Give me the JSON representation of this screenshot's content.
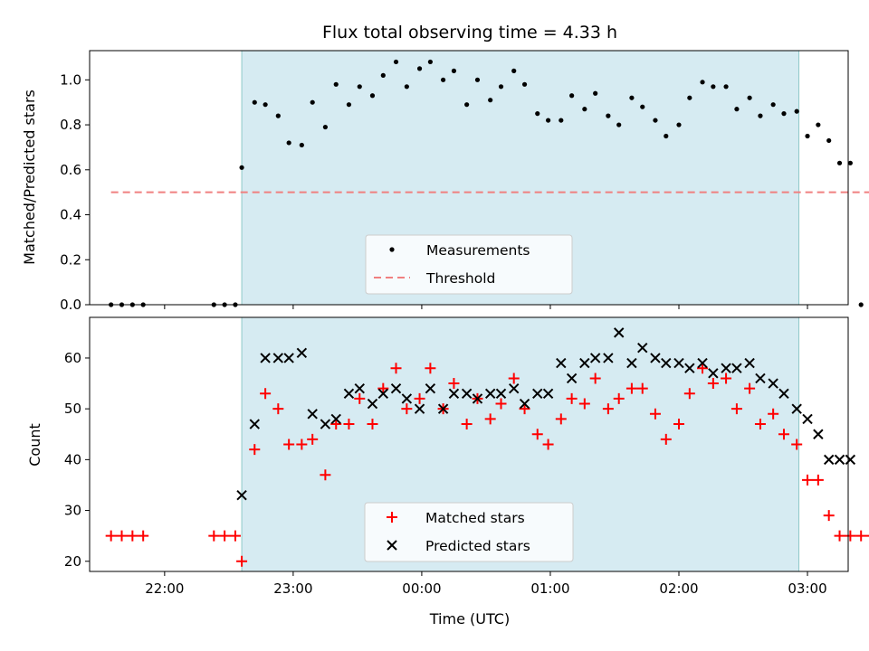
{
  "chart_data": [
    {
      "type": "scatter",
      "title": "Flux total observing time = 4.33 h",
      "xlabel": "",
      "ylabel": "Matched/Predicted stars",
      "ylim": [
        0,
        1.13
      ],
      "yticks": [
        "0.0",
        "0.2",
        "0.4",
        "0.6",
        "0.8",
        "1.0"
      ],
      "grid": false,
      "legend_position": "lower center",
      "observing_window": [
        "22:36",
        "02:56"
      ],
      "series": [
        {
          "name": "Measurements",
          "marker": "dot",
          "color": "#000000",
          "points": [
            [
              "21:35",
              0.0
            ],
            [
              "21:40",
              0.0
            ],
            [
              "21:45",
              0.0
            ],
            [
              "21:50",
              0.0
            ],
            [
              "22:23",
              0.0
            ],
            [
              "22:28",
              0.0
            ],
            [
              "22:33",
              0.0
            ],
            [
              "22:36",
              0.61
            ],
            [
              "22:42",
              0.9
            ],
            [
              "22:47",
              0.89
            ],
            [
              "22:53",
              0.84
            ],
            [
              "22:58",
              0.72
            ],
            [
              "23:04",
              0.71
            ],
            [
              "23:09",
              0.9
            ],
            [
              "23:15",
              0.79
            ],
            [
              "23:20",
              0.98
            ],
            [
              "23:26",
              0.89
            ],
            [
              "23:31",
              0.97
            ],
            [
              "23:37",
              0.93
            ],
            [
              "23:42",
              1.02
            ],
            [
              "23:48",
              1.08
            ],
            [
              "23:53",
              0.97
            ],
            [
              "23:59",
              1.05
            ],
            [
              "00:04",
              1.08
            ],
            [
              "00:10",
              1.0
            ],
            [
              "00:15",
              1.04
            ],
            [
              "00:21",
              0.89
            ],
            [
              "00:26",
              1.0
            ],
            [
              "00:32",
              0.91
            ],
            [
              "00:37",
              0.97
            ],
            [
              "00:43",
              1.04
            ],
            [
              "00:48",
              0.98
            ],
            [
              "00:54",
              0.85
            ],
            [
              "00:59",
              0.82
            ],
            [
              "01:05",
              0.82
            ],
            [
              "01:10",
              0.93
            ],
            [
              "01:16",
              0.87
            ],
            [
              "01:21",
              0.94
            ],
            [
              "01:27",
              0.84
            ],
            [
              "01:32",
              0.8
            ],
            [
              "01:38",
              0.92
            ],
            [
              "01:43",
              0.88
            ],
            [
              "01:49",
              0.82
            ],
            [
              "01:54",
              0.75
            ],
            [
              "02:00",
              0.8
            ],
            [
              "02:05",
              0.92
            ],
            [
              "02:11",
              0.99
            ],
            [
              "02:16",
              0.97
            ],
            [
              "02:22",
              0.97
            ],
            [
              "02:27",
              0.87
            ],
            [
              "02:33",
              0.92
            ],
            [
              "02:38",
              0.84
            ],
            [
              "02:44",
              0.89
            ],
            [
              "02:49",
              0.85
            ],
            [
              "02:55",
              0.86
            ],
            [
              "03:00",
              0.75
            ],
            [
              "03:05",
              0.8
            ],
            [
              "03:10",
              0.73
            ],
            [
              "03:15",
              0.63
            ],
            [
              "03:20",
              0.63
            ],
            [
              "03:25",
              0.0
            ],
            [
              "03:30",
              0.0
            ]
          ]
        },
        {
          "name": "Threshold",
          "style": "dashed",
          "color": "#f08080",
          "points": [
            [
              "21:35",
              0.5
            ],
            [
              "03:30",
              0.5
            ]
          ]
        }
      ]
    },
    {
      "type": "scatter",
      "title": "",
      "xlabel": "Time (UTC)",
      "ylabel": "Count",
      "ylim": [
        18,
        68
      ],
      "yticks": [
        "20",
        "30",
        "40",
        "50",
        "60"
      ],
      "xticks": [
        "22:00",
        "23:00",
        "00:00",
        "01:00",
        "02:00",
        "03:00"
      ],
      "grid": false,
      "legend_position": "lower center",
      "observing_window": [
        "22:36",
        "02:56"
      ],
      "series": [
        {
          "name": "Matched stars",
          "marker": "plus",
          "color": "#ff0000",
          "points": [
            [
              "21:35",
              25
            ],
            [
              "21:40",
              25
            ],
            [
              "21:45",
              25
            ],
            [
              "21:50",
              25
            ],
            [
              "22:23",
              25
            ],
            [
              "22:28",
              25
            ],
            [
              "22:33",
              25
            ],
            [
              "22:36",
              20
            ],
            [
              "22:42",
              42
            ],
            [
              "22:47",
              53
            ],
            [
              "22:53",
              50
            ],
            [
              "22:58",
              43
            ],
            [
              "23:04",
              43
            ],
            [
              "23:09",
              44
            ],
            [
              "23:15",
              37
            ],
            [
              "23:20",
              47
            ],
            [
              "23:26",
              47
            ],
            [
              "23:31",
              52
            ],
            [
              "23:37",
              47
            ],
            [
              "23:42",
              54
            ],
            [
              "23:48",
              58
            ],
            [
              "23:53",
              50
            ],
            [
              "23:59",
              52
            ],
            [
              "00:04",
              58
            ],
            [
              "00:10",
              50
            ],
            [
              "00:15",
              55
            ],
            [
              "00:21",
              47
            ],
            [
              "00:26",
              52
            ],
            [
              "00:32",
              48
            ],
            [
              "00:37",
              51
            ],
            [
              "00:43",
              56
            ],
            [
              "00:48",
              50
            ],
            [
              "00:54",
              45
            ],
            [
              "00:59",
              43
            ],
            [
              "01:05",
              48
            ],
            [
              "01:10",
              52
            ],
            [
              "01:16",
              51
            ],
            [
              "01:21",
              56
            ],
            [
              "01:27",
              50
            ],
            [
              "01:32",
              52
            ],
            [
              "01:38",
              54
            ],
            [
              "01:43",
              54
            ],
            [
              "01:49",
              49
            ],
            [
              "01:54",
              44
            ],
            [
              "02:00",
              47
            ],
            [
              "02:05",
              53
            ],
            [
              "02:11",
              58
            ],
            [
              "02:16",
              55
            ],
            [
              "02:22",
              56
            ],
            [
              "02:27",
              50
            ],
            [
              "02:33",
              54
            ],
            [
              "02:38",
              47
            ],
            [
              "02:44",
              49
            ],
            [
              "02:49",
              45
            ],
            [
              "02:55",
              43
            ],
            [
              "03:00",
              36
            ],
            [
              "03:05",
              36
            ],
            [
              "03:10",
              29
            ],
            [
              "03:15",
              25
            ],
            [
              "03:20",
              25
            ],
            [
              "03:25",
              25
            ],
            [
              "03:30",
              25
            ]
          ]
        },
        {
          "name": "Predicted stars",
          "marker": "x",
          "color": "#000000",
          "points": [
            [
              "22:36",
              33
            ],
            [
              "22:42",
              47
            ],
            [
              "22:47",
              60
            ],
            [
              "22:53",
              60
            ],
            [
              "22:58",
              60
            ],
            [
              "23:04",
              61
            ],
            [
              "23:09",
              49
            ],
            [
              "23:15",
              47
            ],
            [
              "23:20",
              48
            ],
            [
              "23:26",
              53
            ],
            [
              "23:31",
              54
            ],
            [
              "23:37",
              51
            ],
            [
              "23:42",
              53
            ],
            [
              "23:48",
              54
            ],
            [
              "23:53",
              52
            ],
            [
              "23:59",
              50
            ],
            [
              "00:04",
              54
            ],
            [
              "00:10",
              50
            ],
            [
              "00:15",
              53
            ],
            [
              "00:21",
              53
            ],
            [
              "00:26",
              52
            ],
            [
              "00:32",
              53
            ],
            [
              "00:37",
              53
            ],
            [
              "00:43",
              54
            ],
            [
              "00:48",
              51
            ],
            [
              "00:54",
              53
            ],
            [
              "00:59",
              53
            ],
            [
              "01:05",
              59
            ],
            [
              "01:10",
              56
            ],
            [
              "01:16",
              59
            ],
            [
              "01:21",
              60
            ],
            [
              "01:27",
              60
            ],
            [
              "01:32",
              65
            ],
            [
              "01:38",
              59
            ],
            [
              "01:43",
              62
            ],
            [
              "01:49",
              60
            ],
            [
              "01:54",
              59
            ],
            [
              "02:00",
              59
            ],
            [
              "02:05",
              58
            ],
            [
              "02:11",
              59
            ],
            [
              "02:16",
              57
            ],
            [
              "02:22",
              58
            ],
            [
              "02:27",
              58
            ],
            [
              "02:33",
              59
            ],
            [
              "02:38",
              56
            ],
            [
              "02:44",
              55
            ],
            [
              "02:49",
              53
            ],
            [
              "02:55",
              50
            ],
            [
              "03:00",
              48
            ],
            [
              "03:05",
              45
            ],
            [
              "03:10",
              40
            ],
            [
              "03:15",
              40
            ],
            [
              "03:20",
              40
            ]
          ]
        }
      ]
    }
  ]
}
